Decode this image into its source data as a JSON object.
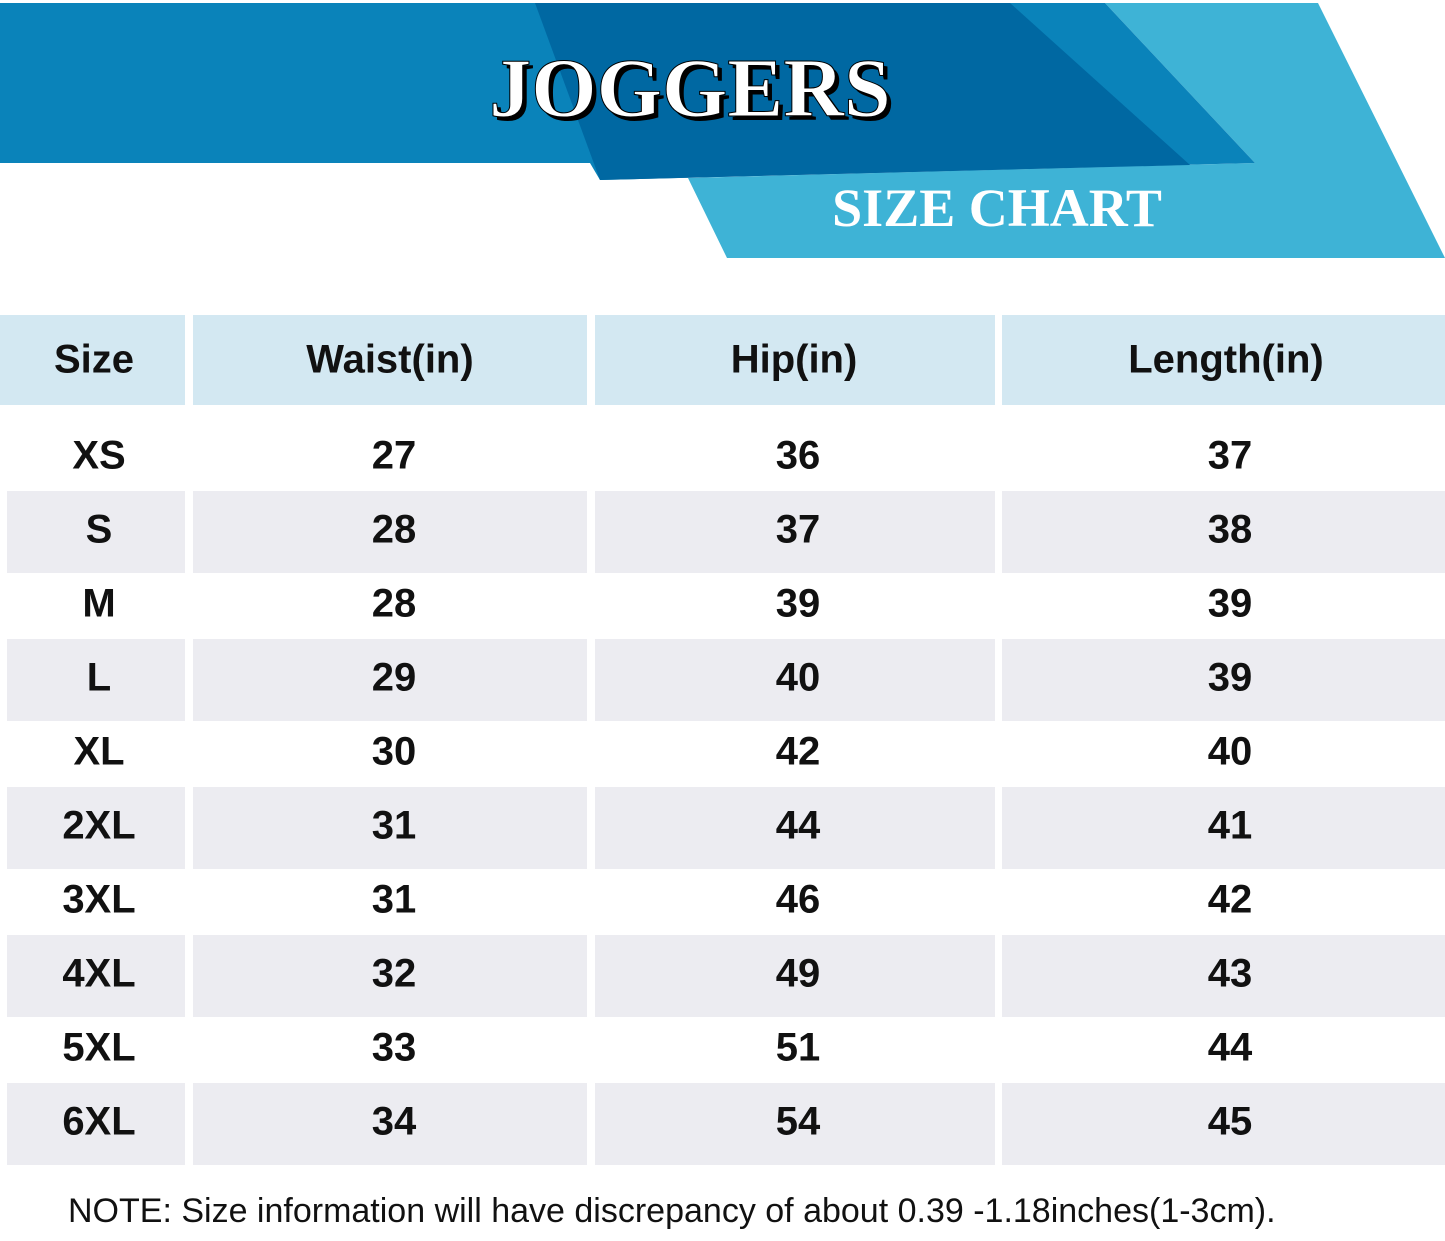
{
  "header": {
    "title": "JOGGERS",
    "subtitle": "SIZE CHART"
  },
  "table": {
    "columns": [
      "Size",
      "Waist(in)",
      "Hip(in)",
      "Length(in)"
    ],
    "rows": [
      [
        "XS",
        "27",
        "36",
        "37"
      ],
      [
        "S",
        "28",
        "37",
        "38"
      ],
      [
        "M",
        "28",
        "39",
        "39"
      ],
      [
        "L",
        "29",
        "40",
        "39"
      ],
      [
        "XL",
        "30",
        "42",
        "40"
      ],
      [
        "2XL",
        "31",
        "44",
        "41"
      ],
      [
        "3XL",
        "31",
        "46",
        "42"
      ],
      [
        "4XL",
        "32",
        "49",
        "43"
      ],
      [
        "5XL",
        "33",
        "51",
        "44"
      ],
      [
        "6XL",
        "34",
        "54",
        "45"
      ]
    ]
  },
  "note": "NOTE: Size information will have discrepancy of about 0.39 -1.18inches(1-3cm)."
}
